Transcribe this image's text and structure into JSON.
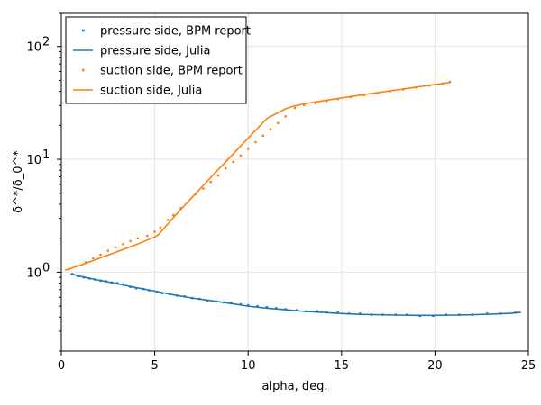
{
  "chart_data": {
    "type": "line",
    "xlabel": "alpha, deg.",
    "ylabel": "δ^*/δ_0^*",
    "xlim": [
      0,
      25
    ],
    "ylim": [
      0.2,
      200
    ],
    "yscale": "log",
    "grid": true,
    "legend_position": "top-left",
    "x_ticks": [
      {
        "value": 0,
        "label": "0"
      },
      {
        "value": 5,
        "label": "5"
      },
      {
        "value": 10,
        "label": "10"
      },
      {
        "value": 15,
        "label": "15"
      },
      {
        "value": 20,
        "label": "20"
      },
      {
        "value": 25,
        "label": "25"
      }
    ],
    "y_ticks": [
      {
        "value": 1,
        "label": "10",
        "exp": "0"
      },
      {
        "value": 10,
        "label": "10",
        "exp": "1"
      },
      {
        "value": 100,
        "label": "10",
        "exp": "2"
      }
    ],
    "series": [
      {
        "name": "pressure side, BPM report",
        "style": "scatter",
        "color": "#1f77b4",
        "x": [
          0.6,
          0.9,
          1.2,
          1.5,
          1.8,
          2.1,
          2.4,
          2.7,
          3.0,
          3.3,
          3.7,
          4.0,
          4.4,
          4.7,
          5.1,
          5.4,
          5.8,
          6.2,
          6.6,
          7.0,
          7.4,
          7.8,
          8.3,
          8.7,
          9.1,
          9.6,
          10.0,
          10.5,
          11.0,
          11.5,
          12.0,
          12.6,
          13.1,
          13.7,
          14.2,
          14.8,
          15.4,
          16.0,
          16.6,
          17.2,
          17.9,
          18.5,
          19.2,
          19.9,
          20.6,
          21.3,
          22.0,
          22.8,
          23.5,
          24.3
        ],
        "y": [
          0.96,
          0.92,
          0.9,
          0.88,
          0.86,
          0.84,
          0.83,
          0.81,
          0.8,
          0.78,
          0.74,
          0.72,
          0.71,
          0.69,
          0.67,
          0.65,
          0.64,
          0.62,
          0.61,
          0.59,
          0.58,
          0.56,
          0.55,
          0.54,
          0.53,
          0.52,
          0.51,
          0.5,
          0.49,
          0.48,
          0.47,
          0.46,
          0.45,
          0.45,
          0.44,
          0.44,
          0.43,
          0.43,
          0.42,
          0.42,
          0.42,
          0.42,
          0.41,
          0.41,
          0.42,
          0.42,
          0.42,
          0.43,
          0.43,
          0.44
        ]
      },
      {
        "name": "pressure side, Julia",
        "style": "line",
        "color": "#1f77b4",
        "x": [
          0.5,
          1,
          2,
          3,
          4,
          5,
          6,
          7,
          8,
          9,
          10,
          11,
          12,
          13,
          14,
          15,
          16,
          17,
          18,
          19,
          20,
          21,
          22,
          23,
          24,
          24.6
        ],
        "y": [
          0.97,
          0.92,
          0.85,
          0.79,
          0.73,
          0.68,
          0.63,
          0.59,
          0.56,
          0.53,
          0.5,
          0.48,
          0.465,
          0.45,
          0.44,
          0.43,
          0.423,
          0.42,
          0.417,
          0.415,
          0.415,
          0.417,
          0.42,
          0.425,
          0.432,
          0.44
        ]
      },
      {
        "name": "suction side, BPM report",
        "style": "scatter",
        "color": "#ff7f0e",
        "x": [
          0.4,
          0.8,
          1.3,
          1.7,
          2.1,
          2.5,
          2.9,
          3.3,
          3.7,
          4.1,
          4.6,
          5.0,
          5.3,
          5.7,
          6.0,
          6.4,
          6.8,
          7.2,
          7.6,
          8.0,
          8.4,
          8.8,
          9.2,
          9.6,
          10.0,
          10.4,
          10.8,
          11.2,
          11.6,
          12.0,
          12.5,
          13.0,
          13.6,
          14.2,
          14.8,
          15.5,
          16.2,
          16.9,
          17.6,
          18.3,
          19.0,
          19.7,
          20.4,
          20.8
        ],
        "y": [
          1.06,
          1.13,
          1.22,
          1.33,
          1.43,
          1.55,
          1.66,
          1.77,
          1.88,
          1.99,
          2.1,
          2.28,
          2.48,
          2.9,
          3.2,
          3.7,
          4.2,
          4.9,
          5.5,
          6.3,
          7.2,
          8.3,
          9.5,
          10.8,
          12.4,
          14.2,
          16.2,
          18.5,
          21.0,
          24.0,
          28.5,
          30.3,
          31.5,
          32.8,
          34.2,
          35.6,
          37.0,
          38.5,
          40.0,
          41.6,
          43.3,
          45.0,
          47.0,
          48.5
        ]
      },
      {
        "name": "suction side, Julia",
        "style": "line",
        "color": "#ff7f0e",
        "x": [
          0.2,
          1,
          2,
          3,
          4,
          5,
          5.2,
          6,
          7,
          8,
          9,
          10,
          11,
          12,
          12.4,
          13,
          14,
          15,
          16,
          17,
          18,
          19,
          20,
          20.8
        ],
        "y": [
          1.04,
          1.15,
          1.32,
          1.52,
          1.75,
          2.05,
          2.15,
          3.05,
          4.6,
          6.9,
          10.3,
          15.4,
          23.0,
          28.0,
          29.5,
          31.0,
          33.0,
          35.0,
          37.0,
          39.1,
          41.3,
          43.6,
          46.0,
          48.0
        ]
      }
    ]
  }
}
